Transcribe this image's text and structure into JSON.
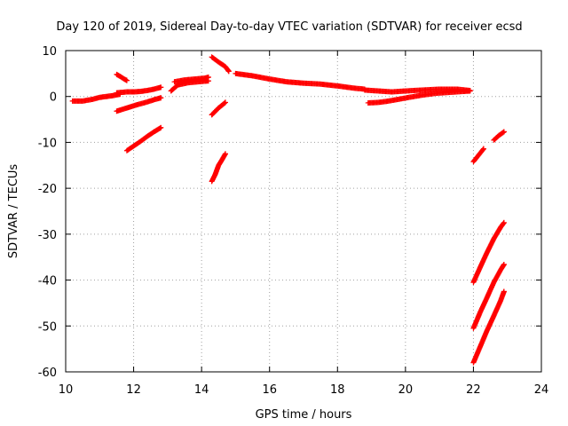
{
  "chart_data": {
    "type": "scatter",
    "title": "Day 120 of 2019, Sidereal Day-to-day VTEC variation (SDTVAR) for receiver ecsd",
    "xlabel": "GPS time / hours",
    "ylabel": "SDTVAR / TECUs",
    "xlim": [
      10,
      24
    ],
    "ylim": [
      -60,
      10
    ],
    "xticks": [
      "10",
      "12",
      "14",
      "16",
      "18",
      "20",
      "22",
      "24"
    ],
    "yticks": [
      "10",
      "0",
      "-10",
      "-20",
      "-30",
      "-40",
      "-50",
      "-60"
    ],
    "grid": true,
    "marker": "plus",
    "color": "#ff0000",
    "series": [
      {
        "x": [
          10.2,
          10.5,
          10.8,
          11.0,
          11.2,
          11.4,
          11.6
        ],
        "y": [
          -1.0,
          -1.0,
          -0.6,
          -0.2,
          0.0,
          0.2,
          0.5
        ]
      },
      {
        "x": [
          11.5,
          11.6,
          11.7,
          11.8
        ],
        "y": [
          4.8,
          4.4,
          3.9,
          3.5
        ]
      },
      {
        "x": [
          11.5,
          11.8,
          12.0,
          12.2,
          12.4,
          12.6,
          12.8
        ],
        "y": [
          0.8,
          1.0,
          1.0,
          1.1,
          1.3,
          1.6,
          2.0
        ]
      },
      {
        "x": [
          11.5,
          11.8,
          12.1,
          12.4,
          12.6,
          12.8
        ],
        "y": [
          -3.2,
          -2.5,
          -1.8,
          -1.2,
          -0.7,
          -0.3
        ]
      },
      {
        "x": [
          11.8,
          12.0,
          12.2,
          12.4,
          12.6,
          12.8
        ],
        "y": [
          -11.8,
          -10.8,
          -9.8,
          -8.7,
          -7.7,
          -6.8
        ]
      },
      {
        "x": [
          13.1,
          13.3,
          13.6,
          13.9,
          14.2
        ],
        "y": [
          1.2,
          2.5,
          3.0,
          3.2,
          3.4
        ]
      },
      {
        "x": [
          13.2,
          13.5,
          13.8,
          14.1,
          14.2
        ],
        "y": [
          3.2,
          3.6,
          3.8,
          4.0,
          4.2
        ]
      },
      {
        "x": [
          14.3,
          14.5,
          14.7,
          14.8
        ],
        "y": [
          8.6,
          7.5,
          6.5,
          5.5
        ]
      },
      {
        "x": [
          14.3,
          14.5,
          14.7
        ],
        "y": [
          -4.0,
          -2.5,
          -1.3
        ]
      },
      {
        "x": [
          14.3,
          14.4,
          14.5,
          14.6,
          14.7
        ],
        "y": [
          -18.5,
          -17.0,
          -15.0,
          -13.8,
          -12.5
        ]
      },
      {
        "x": [
          15.0,
          15.5,
          16.0,
          16.5,
          17.0,
          17.5,
          18.0,
          18.5,
          18.8
        ],
        "y": [
          5.0,
          4.5,
          3.8,
          3.2,
          2.9,
          2.7,
          2.3,
          1.8,
          1.6
        ]
      },
      {
        "x": [
          18.8,
          19.2,
          19.6,
          20.0,
          20.5,
          21.0,
          21.5,
          21.9
        ],
        "y": [
          1.4,
          1.2,
          1.0,
          1.2,
          1.4,
          1.6,
          1.6,
          1.3
        ]
      },
      {
        "x": [
          18.9,
          19.2,
          19.5,
          19.8,
          20.1,
          20.5,
          20.9,
          21.3,
          21.7,
          21.9
        ],
        "y": [
          -1.4,
          -1.3,
          -1.0,
          -0.6,
          -0.2,
          0.3,
          0.7,
          0.9,
          1.1,
          1.2
        ]
      },
      {
        "x": [
          22.0,
          22.15,
          22.3
        ],
        "y": [
          -14.2,
          -12.8,
          -11.4
        ]
      },
      {
        "x": [
          22.6,
          22.75,
          22.9
        ],
        "y": [
          -9.5,
          -8.5,
          -7.7
        ]
      },
      {
        "x": [
          22.0,
          22.2,
          22.4,
          22.6,
          22.8,
          22.9
        ],
        "y": [
          -40.5,
          -37.2,
          -34.0,
          -31.0,
          -28.5,
          -27.5
        ]
      },
      {
        "x": [
          22.0,
          22.2,
          22.4,
          22.6,
          22.8,
          22.9
        ],
        "y": [
          -50.5,
          -47.0,
          -43.8,
          -40.5,
          -37.8,
          -36.6
        ]
      },
      {
        "x": [
          22.0,
          22.2,
          22.4,
          22.6,
          22.8,
          22.9
        ],
        "y": [
          -58.0,
          -54.5,
          -51.0,
          -47.8,
          -44.5,
          -42.5
        ]
      }
    ]
  }
}
